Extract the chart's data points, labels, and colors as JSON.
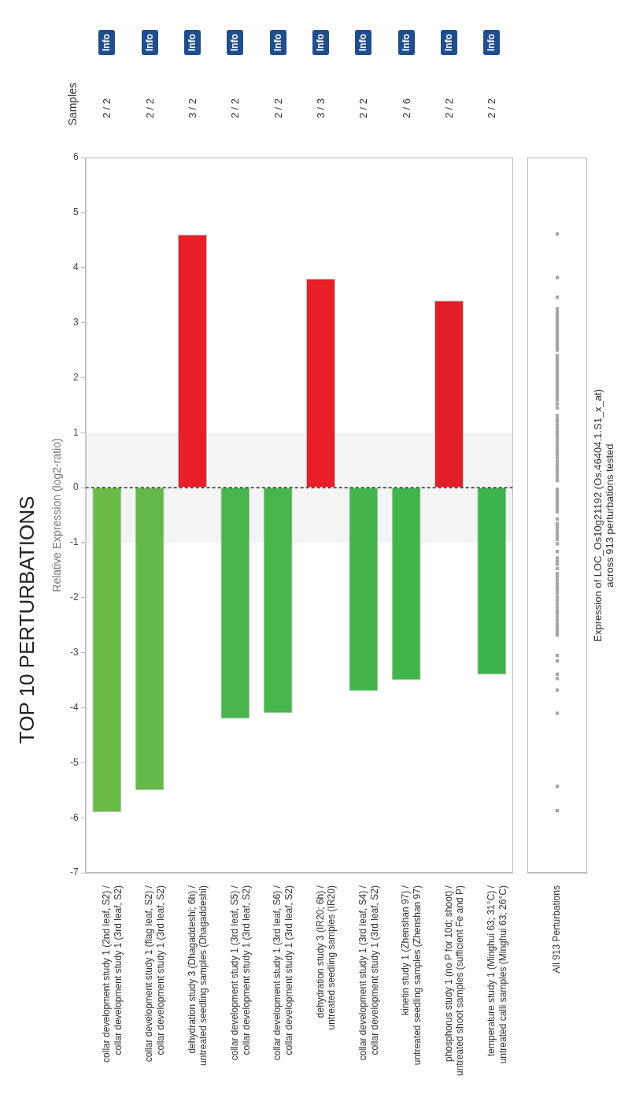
{
  "chart_data": [
    {
      "type": "bar",
      "title": "TOP 10 PERTURBATIONS",
      "ylabel": "Relative Expression (log2-ratio)",
      "categories": [
        "collar development study 1 (2nd leaf, S2) / collar development study 1 (3rd leaf, S2)",
        "collar development study 1 (flag leaf, S2) / collar development study 1 (3rd leaf, S2)",
        "dehydration study 3 (Dhagaddeshi; 6h) / untreated seedling samples (Dhagaddeshi)",
        "collar development study 1 (3rd leaf, S5) / collar development study 1 (3rd leaf, S2)",
        "collar development study 1 (3rd leaf, S6) / collar development study 1 (3rd leaf, S2)",
        "dehydration study 3 (IR20; 6h) / untreated seedling samples (IR20)",
        "collar development study 1 (3rd leaf, S4) / collar development study 1 (3rd leaf, S2)",
        "kinetin study 1 (Zhenshan 97) / untreated seedling samples (Zhenshan 97)",
        "phosphorus study 1 (no P for 10d; shoot) / untreated shoot samples (sufficient Fe and P)",
        "temperature study 1 (Minghui 63; 31°C) / untreated calli samples (Minghui 63; 26°C)"
      ],
      "values": [
        -5.9,
        -5.5,
        4.6,
        -4.2,
        -4.1,
        3.8,
        -3.7,
        -3.5,
        3.4,
        -3.4
      ],
      "colors": [
        "#6abb47",
        "#64b94a",
        "#e81f27",
        "#47b54b",
        "#46b54b",
        "#e81f27",
        "#43b54b",
        "#40b54c",
        "#e11f27",
        "#3db54c"
      ],
      "ylim": [
        -7,
        6
      ],
      "yticks": [
        -7,
        -6,
        -5,
        -4,
        -3,
        -2,
        -1,
        0,
        1,
        2,
        3,
        4,
        5,
        6
      ],
      "bands": [
        {
          "axis": "y",
          "from": -1,
          "to": 1,
          "color": "#f3f5f4"
        }
      ],
      "ref_lines": [
        {
          "axis": "y",
          "value": 0,
          "color": "#000000",
          "line_style": "dashed"
        }
      ],
      "annotations": [
        "Samples",
        "2 / 2",
        "2 / 2",
        "3 / 2",
        "2 / 2",
        "2 / 2",
        "3 / 3",
        "2 / 2",
        "2 / 6",
        "2 / 2",
        "2 / 2",
        "Info",
        "Info",
        "Info",
        "Info",
        "Info",
        "Info",
        "Info",
        "Info",
        "Info",
        "Info"
      ]
    },
    {
      "type": "scatter",
      "categories": [
        "All 913 Perturbations"
      ],
      "ylim": [
        -7,
        6
      ],
      "tick_labels": "x",
      "marker": "square",
      "annotations": [
        "Expression of LOC_Os10g21192 (Os.46404.1.S1_x_at)",
        "across 913 perturbations tested"
      ],
      "series": [
        {
          "color": "#a6a6a6",
          "x": [
            "All 913 Perturbations",
            "All 913 Perturbations",
            "All 913 Perturbations",
            "All 913 Perturbations",
            "All 913 Perturbations",
            "All 913 Perturbations",
            "All 913 Perturbations",
            "All 913 Perturbations",
            "All 913 Perturbations",
            "All 913 Perturbations",
            "All 913 Perturbations",
            "All 913 Perturbations",
            "All 913 Perturbations",
            "All 913 Perturbations",
            "All 913 Perturbations",
            "All 913 Perturbations",
            "All 913 Perturbations",
            "All 913 Perturbations",
            "All 913 Perturbations",
            "All 913 Perturbations",
            "All 913 Perturbations",
            "All 913 Perturbations",
            "All 913 Perturbations",
            "All 913 Perturbations",
            "All 913 Perturbations",
            "All 913 Perturbations",
            "All 913 Perturbations",
            "All 913 Perturbations",
            "All 913 Perturbations",
            "All 913 Perturbations",
            "All 913 Perturbations",
            "All 913 Perturbations",
            "All 913 Perturbations",
            "All 913 Perturbations",
            "All 913 Perturbations",
            "All 913 Perturbations",
            "All 913 Perturbations",
            "All 913 Perturbations",
            "All 913 Perturbations",
            "All 913 Perturbations",
            "All 913 Perturbations",
            "All 913 Perturbations",
            "All 913 Perturbations",
            "All 913 Perturbations",
            "All 913 Perturbations",
            "All 913 Perturbations",
            "All 913 Perturbations",
            "All 913 Perturbations",
            "All 913 Perturbations",
            "All 913 Perturbations",
            "All 913 Perturbations",
            "All 913 Perturbations",
            "All 913 Perturbations",
            "All 913 Perturbations",
            "All 913 Perturbations",
            "All 913 Perturbations",
            "All 913 Perturbations",
            "All 913 Perturbations",
            "All 913 Perturbations",
            "All 913 Perturbations",
            "All 913 Perturbations",
            "All 913 Perturbations",
            "All 913 Perturbations",
            "All 913 Perturbations",
            "All 913 Perturbations",
            "All 913 Perturbations",
            "All 913 Perturbations",
            "All 913 Perturbations",
            "All 913 Perturbations",
            "All 913 Perturbations",
            "All 913 Perturbations",
            "All 913 Perturbations",
            "All 913 Perturbations",
            "All 913 Perturbations",
            "All 913 Perturbations",
            "All 913 Perturbations",
            "All 913 Perturbations",
            "All 913 Perturbations",
            "All 913 Perturbations",
            "All 913 Perturbations",
            "All 913 Perturbations",
            "All 913 Perturbations",
            "All 913 Perturbations",
            "All 913 Perturbations",
            "All 913 Perturbations",
            "All 913 Perturbations",
            "All 913 Perturbations",
            "All 913 Perturbations",
            "All 913 Perturbations",
            "All 913 Perturbations",
            "All 913 Perturbations",
            "All 913 Perturbations",
            "All 913 Perturbations",
            "All 913 Perturbations",
            "All 913 Perturbations",
            "All 913 Perturbations",
            "All 913 Perturbations",
            "All 913 Perturbations",
            "All 913 Perturbations",
            "All 913 Perturbations",
            "All 913 Perturbations",
            "All 913 Perturbations",
            "All 913 Perturbations",
            "All 913 Perturbations",
            "All 913 Perturbations",
            "All 913 Perturbations",
            "All 913 Perturbations",
            "All 913 Perturbations",
            "All 913 Perturbations"
          ],
          "values": [
            4.61,
            3.82,
            3.46,
            3.25,
            3.2,
            3.15,
            3.1,
            3.05,
            3.0,
            2.95,
            2.9,
            2.85,
            2.8,
            2.75,
            2.7,
            2.65,
            2.6,
            2.55,
            2.5,
            2.4,
            2.35,
            2.3,
            2.25,
            2.2,
            2.15,
            2.1,
            2.05,
            2.0,
            1.95,
            1.9,
            1.85,
            1.8,
            1.75,
            1.7,
            1.65,
            1.59,
            1.52,
            1.45,
            1.31,
            1.25,
            1.2,
            1.14,
            1.08,
            1.02,
            0.96,
            0.9,
            0.84,
            0.78,
            0.72,
            0.66,
            0.6,
            0.54,
            0.48,
            0.42,
            0.36,
            0.3,
            0.24,
            0.18,
            0.13,
            -0.03,
            -0.08,
            -0.13,
            -0.18,
            -0.23,
            -0.28,
            -0.33,
            -0.38,
            -0.44,
            -0.57,
            -0.66,
            -0.72,
            -0.78,
            -0.84,
            -0.9,
            -0.94,
            -1.02,
            -1.16,
            -1.28,
            -1.34,
            -1.39,
            -1.47,
            -1.56,
            -1.62,
            -1.68,
            -1.74,
            -1.8,
            -1.86,
            -1.92,
            -1.99,
            -2.05,
            -2.11,
            -2.17,
            -2.23,
            -2.29,
            -2.35,
            -2.41,
            -2.47,
            -2.53,
            -2.59,
            -2.64,
            -2.68,
            -3.05,
            -3.15,
            -3.39,
            -3.47,
            -3.68,
            -4.1,
            -5.43,
            -5.87
          ]
        }
      ]
    }
  ]
}
